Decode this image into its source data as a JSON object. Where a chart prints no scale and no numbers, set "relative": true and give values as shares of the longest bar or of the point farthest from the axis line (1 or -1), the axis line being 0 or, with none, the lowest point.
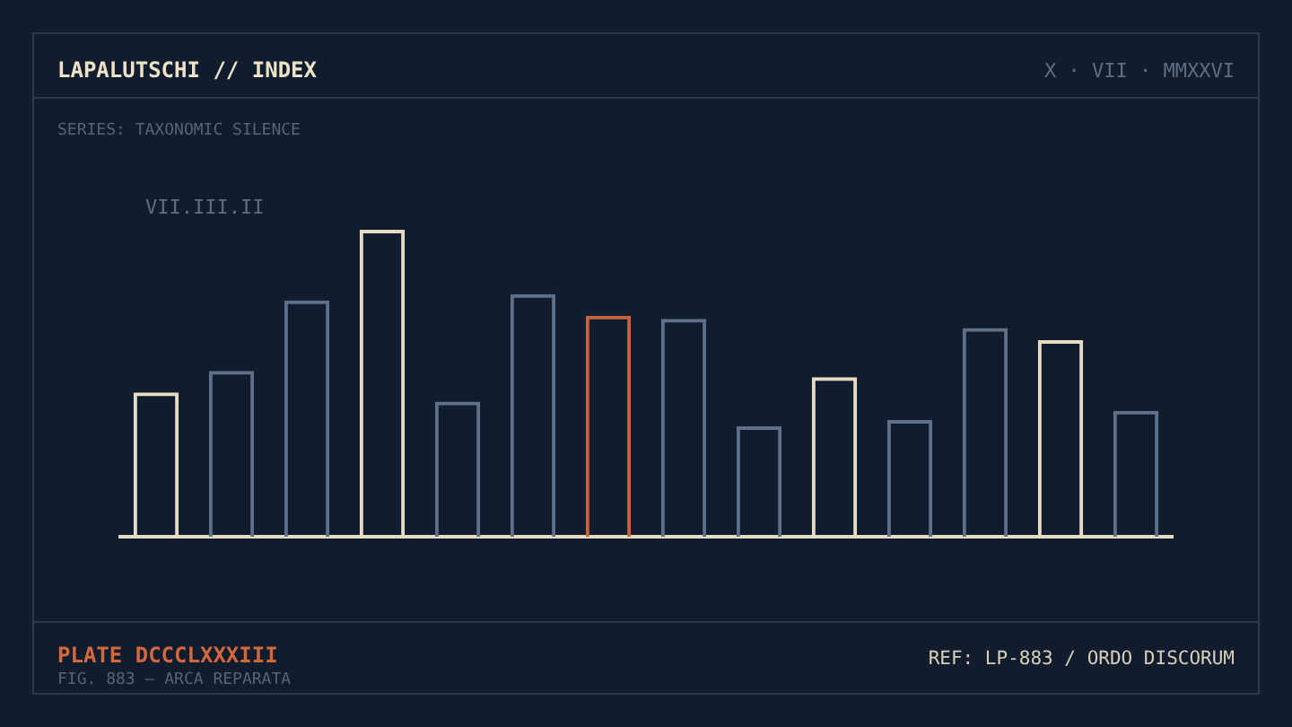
{
  "chart_data": {
    "type": "bar",
    "relative": true,
    "title": "LAPALUTSCHI // INDEX",
    "subtitle": "SERIES: TAXONOMIC SILENCE",
    "categories": [
      null,
      null,
      null,
      null,
      null,
      null,
      null,
      null,
      null,
      null,
      null,
      null,
      null,
      null
    ],
    "values": [
      0.47,
      0.54,
      0.77,
      1,
      0.44,
      0.79,
      0.72,
      0.71,
      0.36,
      0.52,
      0.38,
      0.68,
      0.64,
      0.41
    ],
    "colors": [
      "#e6dcc3",
      "#5f7088",
      "#5f7088",
      "#e6dcc3",
      "#5f7088",
      "#5f7088",
      "#c8643c",
      "#5f7088",
      "#5f7088",
      "#e6dcc3",
      "#5f7088",
      "#5f7088",
      "#e6dcc3",
      "#5f7088"
    ],
    "annotations": [
      "X · VII · MMXXVI",
      "VII.III.II",
      "PLATE DCCCLXXXIII",
      "FIG. 883 — ARCA REPARATA",
      "REF: LP-883 / ORDO DISCORUM"
    ],
    "legend": false
  }
}
